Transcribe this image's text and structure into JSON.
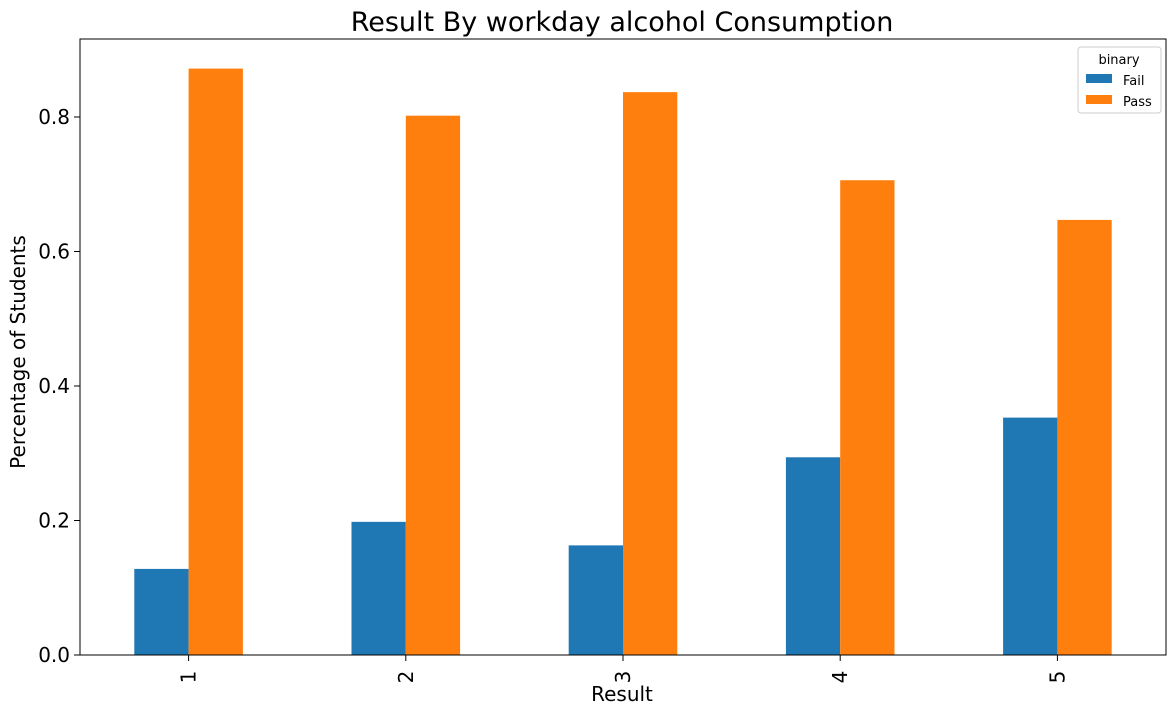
{
  "chart_data": {
    "type": "bar",
    "title": "Result By workday alcohol Consumption",
    "xlabel": "Result",
    "ylabel": "Percentage of Students",
    "categories": [
      "1",
      "2",
      "3",
      "4",
      "5"
    ],
    "series": [
      {
        "name": "Fail",
        "color": "#1f77b4",
        "values": [
          0.128,
          0.198,
          0.163,
          0.294,
          0.353
        ]
      },
      {
        "name": "Pass",
        "color": "#ff7f0e",
        "values": [
          0.872,
          0.802,
          0.837,
          0.706,
          0.647
        ]
      }
    ],
    "ylim": [
      0,
      0.916
    ],
    "yticks": [
      0.0,
      0.2,
      0.4,
      0.6,
      0.8
    ],
    "ytick_labels": [
      "0.0",
      "0.2",
      "0.4",
      "0.6",
      "0.8"
    ],
    "legend": {
      "title": "binary",
      "placement": "top-right"
    },
    "grid": false
  }
}
